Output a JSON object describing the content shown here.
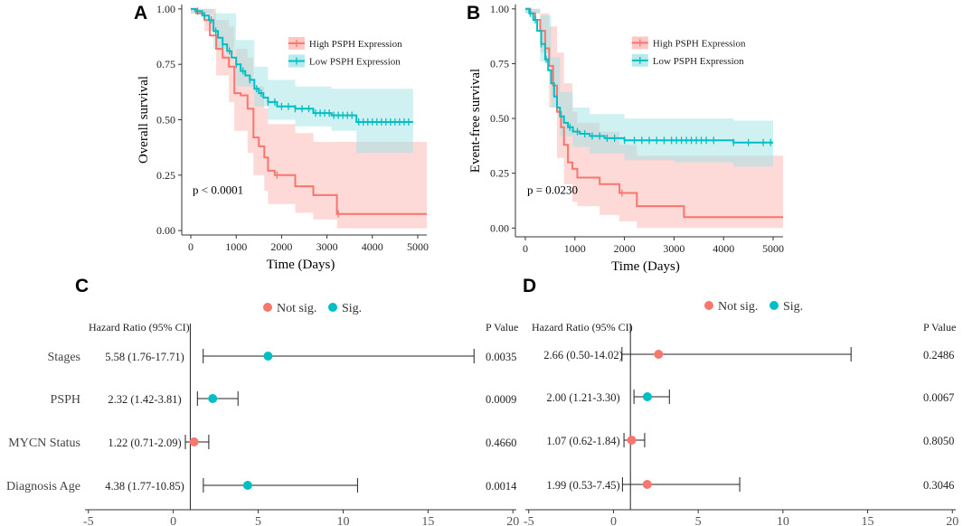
{
  "colors": {
    "high": "#F8766D",
    "high_band": "#FBB4B0",
    "low": "#00BFC4",
    "low_band": "#9FE3E6",
    "not_sig": "#F8766D",
    "sig": "#00BFC4",
    "axis": "#333333"
  },
  "chart_data": [
    {
      "panel": "A",
      "type": "line",
      "subtype": "kaplan-meier",
      "xlabel": "Time (Days)",
      "ylabel": "Overall survival",
      "xlim": [
        -200,
        5200
      ],
      "ylim": [
        -0.02,
        1.02
      ],
      "x_ticks": [
        0,
        1000,
        2000,
        3000,
        4000,
        5000
      ],
      "x_tick_labels": [
        "0",
        "1000",
        "2000",
        "3000",
        "4000",
        "5000"
      ],
      "y_ticks": [
        0,
        0.25,
        0.5,
        0.75,
        1
      ],
      "y_tick_labels": [
        "0.00",
        "0.25",
        "0.50",
        "0.75",
        "1.00"
      ],
      "legend": [
        "High PSPH Expression",
        "Low PSPH Expression"
      ],
      "annotation": "p < 0.0001",
      "series": [
        {
          "name": "High PSPH Expression",
          "steps": [
            [
              0,
              1.0
            ],
            [
              120,
              0.98
            ],
            [
              300,
              0.95
            ],
            [
              420,
              0.88
            ],
            [
              560,
              0.82
            ],
            [
              700,
              0.78
            ],
            [
              840,
              0.74
            ],
            [
              960,
              0.62
            ],
            [
              1100,
              0.61
            ],
            [
              1250,
              0.55
            ],
            [
              1380,
              0.42
            ],
            [
              1500,
              0.38
            ],
            [
              1620,
              0.33
            ],
            [
              1700,
              0.27
            ],
            [
              1850,
              0.25
            ],
            [
              2300,
              0.2
            ],
            [
              2700,
              0.16
            ],
            [
              3000,
              0.16
            ],
            [
              3220,
              0.075
            ],
            [
              5200,
              0.075
            ]
          ],
          "band_upper": [
            [
              0,
              1.0
            ],
            [
              300,
              1.0
            ],
            [
              560,
              0.95
            ],
            [
              840,
              0.92
            ],
            [
              960,
              0.82
            ],
            [
              1250,
              0.78
            ],
            [
              1380,
              0.65
            ],
            [
              1620,
              0.55
            ],
            [
              1700,
              0.48
            ],
            [
              2300,
              0.44
            ],
            [
              2700,
              0.4
            ],
            [
              3220,
              0.4
            ],
            [
              5200,
              0.4
            ]
          ],
          "band_lower": [
            [
              0,
              0.98
            ],
            [
              300,
              0.9
            ],
            [
              560,
              0.7
            ],
            [
              840,
              0.58
            ],
            [
              960,
              0.45
            ],
            [
              1250,
              0.35
            ],
            [
              1380,
              0.25
            ],
            [
              1620,
              0.18
            ],
            [
              1700,
              0.12
            ],
            [
              2300,
              0.08
            ],
            [
              2700,
              0.05
            ],
            [
              3220,
              0.01
            ],
            [
              5200,
              0.01
            ]
          ],
          "censor_times": [
            1900,
            3250
          ]
        },
        {
          "name": "Low PSPH Expression",
          "steps": [
            [
              0,
              1.0
            ],
            [
              100,
              0.99
            ],
            [
              250,
              0.97
            ],
            [
              400,
              0.95
            ],
            [
              500,
              0.9
            ],
            [
              600,
              0.87
            ],
            [
              700,
              0.84
            ],
            [
              800,
              0.81
            ],
            [
              900,
              0.78
            ],
            [
              1000,
              0.75
            ],
            [
              1100,
              0.72
            ],
            [
              1200,
              0.7
            ],
            [
              1300,
              0.68
            ],
            [
              1400,
              0.64
            ],
            [
              1500,
              0.62
            ],
            [
              1600,
              0.6
            ],
            [
              1700,
              0.58
            ],
            [
              1900,
              0.56
            ],
            [
              2300,
              0.55
            ],
            [
              2700,
              0.53
            ],
            [
              3100,
              0.52
            ],
            [
              3600,
              0.52
            ],
            [
              3650,
              0.49
            ],
            [
              4900,
              0.49
            ]
          ],
          "band_upper": [
            [
              0,
              1.0
            ],
            [
              500,
              0.98
            ],
            [
              1000,
              0.86
            ],
            [
              1400,
              0.74
            ],
            [
              1700,
              0.68
            ],
            [
              2300,
              0.65
            ],
            [
              3100,
              0.64
            ],
            [
              3650,
              0.64
            ],
            [
              4900,
              0.64
            ]
          ],
          "band_lower": [
            [
              0,
              0.98
            ],
            [
              500,
              0.82
            ],
            [
              1000,
              0.65
            ],
            [
              1400,
              0.56
            ],
            [
              1700,
              0.5
            ],
            [
              2300,
              0.47
            ],
            [
              3100,
              0.45
            ],
            [
              3650,
              0.35
            ],
            [
              4900,
              0.35
            ]
          ],
          "censor_times": [
            150,
            300,
            450,
            550,
            700,
            850,
            1000,
            1150,
            1300,
            1450,
            1550,
            1700,
            1850,
            2000,
            2150,
            2300,
            2450,
            2600,
            2750,
            2850,
            2950,
            3050,
            3150,
            3250,
            3350,
            3450,
            3550,
            3700,
            3800,
            3900,
            4000,
            4100,
            4200,
            4300,
            4400,
            4500,
            4600,
            4700,
            4800
          ]
        }
      ]
    },
    {
      "panel": "B",
      "type": "line",
      "subtype": "kaplan-meier",
      "xlabel": "Time (Days)",
      "ylabel": "Event-free survival",
      "xlim": [
        -200,
        5200
      ],
      "ylim": [
        -0.04,
        1.02
      ],
      "x_ticks": [
        0,
        1000,
        2000,
        3000,
        4000,
        5000
      ],
      "x_tick_labels": [
        "0",
        "1000",
        "2000",
        "3000",
        "4000",
        "5000"
      ],
      "y_ticks": [
        0,
        0.25,
        0.5,
        0.75,
        1
      ],
      "y_tick_labels": [
        "0.00",
        "0.25",
        "0.50",
        "0.75",
        "1.00"
      ],
      "legend": [
        "High PSPH Expression",
        "Low PSPH Expression"
      ],
      "annotation": "p = 0.0230",
      "series": [
        {
          "name": "High PSPH Expression",
          "steps": [
            [
              0,
              1.0
            ],
            [
              100,
              0.98
            ],
            [
              200,
              0.95
            ],
            [
              300,
              0.9
            ],
            [
              400,
              0.82
            ],
            [
              480,
              0.74
            ],
            [
              560,
              0.65
            ],
            [
              640,
              0.53
            ],
            [
              720,
              0.46
            ],
            [
              780,
              0.38
            ],
            [
              860,
              0.3
            ],
            [
              950,
              0.27
            ],
            [
              1050,
              0.23
            ],
            [
              1500,
              0.2
            ],
            [
              1900,
              0.16
            ],
            [
              2250,
              0.1
            ],
            [
              2600,
              0.1
            ],
            [
              3200,
              0.05
            ],
            [
              5200,
              0.05
            ]
          ],
          "band_upper": [
            [
              0,
              1.0
            ],
            [
              300,
              0.98
            ],
            [
              480,
              0.92
            ],
            [
              640,
              0.8
            ],
            [
              780,
              0.66
            ],
            [
              950,
              0.53
            ],
            [
              1050,
              0.48
            ],
            [
              1500,
              0.44
            ],
            [
              1900,
              0.38
            ],
            [
              2250,
              0.33
            ],
            [
              3200,
              0.33
            ],
            [
              5200,
              0.33
            ]
          ],
          "band_lower": [
            [
              0,
              0.98
            ],
            [
              300,
              0.8
            ],
            [
              480,
              0.55
            ],
            [
              640,
              0.32
            ],
            [
              780,
              0.2
            ],
            [
              950,
              0.12
            ],
            [
              1050,
              0.1
            ],
            [
              1500,
              0.06
            ],
            [
              1900,
              0.03
            ],
            [
              2250,
              0.0
            ],
            [
              5200,
              0.0
            ]
          ],
          "censor_times": [
            1950
          ]
        },
        {
          "name": "Low PSPH Expression",
          "steps": [
            [
              0,
              1.0
            ],
            [
              80,
              0.98
            ],
            [
              160,
              0.95
            ],
            [
              240,
              0.9
            ],
            [
              320,
              0.84
            ],
            [
              400,
              0.77
            ],
            [
              460,
              0.72
            ],
            [
              520,
              0.66
            ],
            [
              580,
              0.6
            ],
            [
              640,
              0.55
            ],
            [
              700,
              0.51
            ],
            [
              780,
              0.48
            ],
            [
              860,
              0.46
            ],
            [
              960,
              0.44
            ],
            [
              1100,
              0.43
            ],
            [
              1300,
              0.42
            ],
            [
              1600,
              0.41
            ],
            [
              2000,
              0.4
            ],
            [
              3000,
              0.4
            ],
            [
              4200,
              0.39
            ],
            [
              5000,
              0.39
            ]
          ],
          "band_upper": [
            [
              0,
              1.0
            ],
            [
              300,
              0.97
            ],
            [
              520,
              0.78
            ],
            [
              700,
              0.62
            ],
            [
              960,
              0.55
            ],
            [
              1300,
              0.52
            ],
            [
              2000,
              0.5
            ],
            [
              3000,
              0.5
            ],
            [
              4200,
              0.49
            ],
            [
              5000,
              0.49
            ]
          ],
          "band_lower": [
            [
              0,
              0.98
            ],
            [
              300,
              0.76
            ],
            [
              520,
              0.55
            ],
            [
              700,
              0.42
            ],
            [
              960,
              0.37
            ],
            [
              1300,
              0.34
            ],
            [
              2000,
              0.31
            ],
            [
              3000,
              0.3
            ],
            [
              4200,
              0.28
            ],
            [
              5000,
              0.28
            ]
          ],
          "censor_times": [
            100,
            200,
            320,
            420,
            900,
            1050,
            1200,
            1350,
            1500,
            1650,
            1800,
            2000,
            2200,
            2350,
            2500,
            2650,
            2800,
            2950,
            3050,
            3150,
            3250,
            3350,
            3450,
            3550,
            3650,
            3800,
            4200,
            4500,
            4800,
            4950
          ]
        }
      ]
    },
    {
      "panel": "C",
      "type": "scatter",
      "subtype": "forest",
      "xlim": [
        -5.2,
        20.2
      ],
      "x_ticks": [
        -5,
        0,
        5,
        10,
        15,
        20
      ],
      "x_tick_labels": [
        "-5",
        "0",
        "5",
        "10",
        "15",
        "20"
      ],
      "reference_line": 1,
      "header_left": "Hazard Ratio (95% CI)",
      "header_right": "P Value",
      "legend": [
        "Not sig.",
        "Sig."
      ],
      "rows": [
        {
          "label": "Stages",
          "hr_text": "5.58 (1.76-17.71)",
          "hr": 5.58,
          "lo": 1.76,
          "hi": 17.71,
          "p": "0.0035",
          "sig": true
        },
        {
          "label": "PSPH",
          "hr_text": "2.32 (1.42-3.81)",
          "hr": 2.32,
          "lo": 1.42,
          "hi": 3.81,
          "p": "0.0009",
          "sig": true
        },
        {
          "label": "MYCN Status",
          "hr_text": "1.22 (0.71-2.09)",
          "hr": 1.22,
          "lo": 0.71,
          "hi": 2.09,
          "p": "0.4660",
          "sig": false
        },
        {
          "label": "Diagnosis Age",
          "hr_text": "4.38 (1.77-10.85)",
          "hr": 4.38,
          "lo": 1.77,
          "hi": 10.85,
          "p": "0.0014",
          "sig": true
        }
      ]
    },
    {
      "panel": "D",
      "type": "scatter",
      "subtype": "forest",
      "xlim": [
        -5.2,
        20.2
      ],
      "x_ticks": [
        -5,
        0,
        5,
        10,
        15,
        20
      ],
      "x_tick_labels": [
        "-5",
        "0",
        "5",
        "10",
        "15",
        "20"
      ],
      "reference_line": 1,
      "header_left": "Hazard Ratio (95% CI)",
      "header_right": "P Value",
      "legend": [
        "Not sig.",
        "Sig."
      ],
      "rows": [
        {
          "label": "",
          "hr_text": "2.66 (0.50-14.02)",
          "hr": 2.66,
          "lo": 0.5,
          "hi": 14.02,
          "p": "0.2486",
          "sig": false
        },
        {
          "label": "",
          "hr_text": "2.00 (1.21-3.30)",
          "hr": 2.0,
          "lo": 1.21,
          "hi": 3.3,
          "p": "0.0067",
          "sig": true
        },
        {
          "label": "",
          "hr_text": "1.07 (0.62-1.84)",
          "hr": 1.07,
          "lo": 0.62,
          "hi": 1.84,
          "p": "0.8050",
          "sig": false
        },
        {
          "label": "",
          "hr_text": "1.99 (0.53-7.45)",
          "hr": 1.99,
          "lo": 0.53,
          "hi": 7.45,
          "p": "0.3046",
          "sig": false
        }
      ]
    }
  ]
}
